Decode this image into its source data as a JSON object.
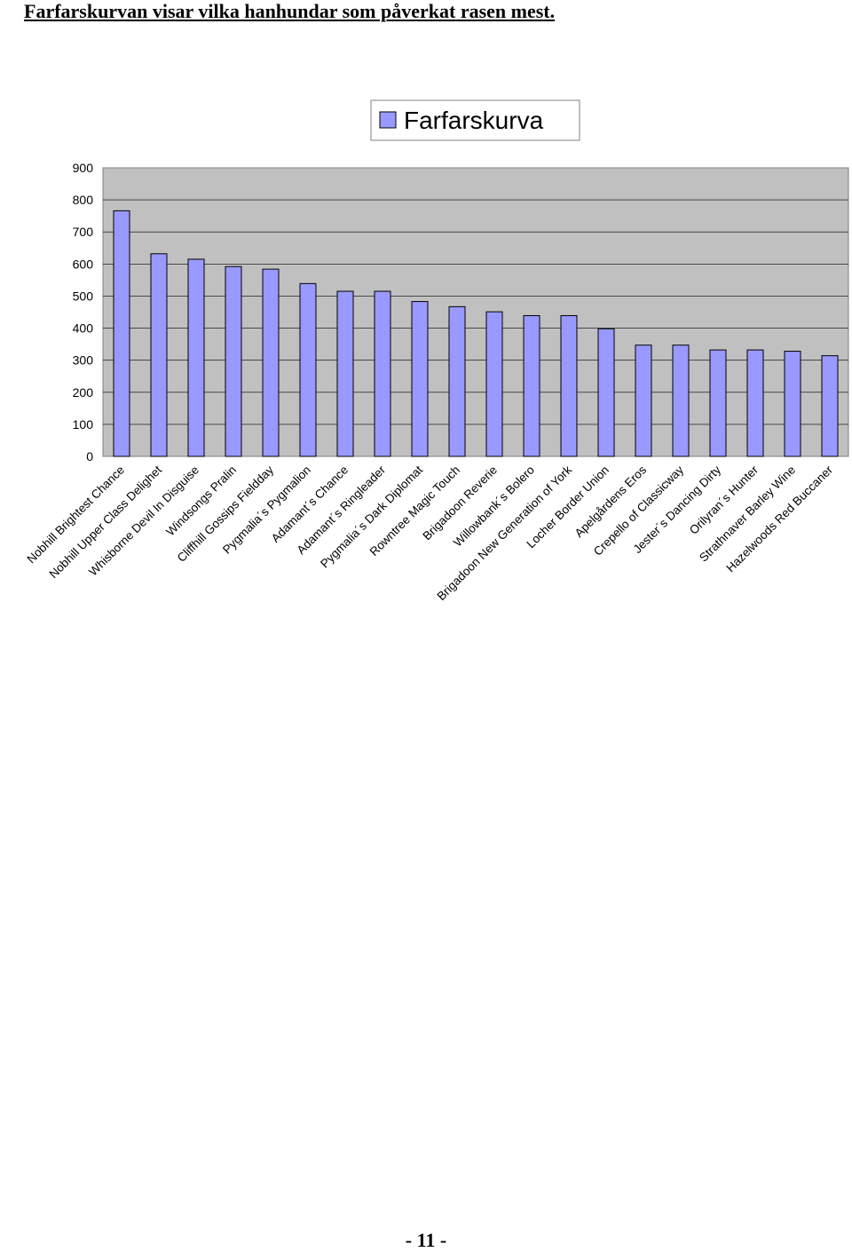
{
  "page": {
    "heading": "Farfarskurvan visar vilka hanhundar som påverkat rasen mest.",
    "page_number": "- 11 -"
  },
  "colors": {
    "bar_fill": "#9999ff",
    "plot_background": "#c0c0c0",
    "gridline": "#000000"
  },
  "chart_data": {
    "type": "bar",
    "title": "",
    "xlabel": "",
    "ylabel": "",
    "ylim": [
      0,
      900
    ],
    "y_ticks": [
      0,
      100,
      200,
      300,
      400,
      500,
      600,
      700,
      800,
      900
    ],
    "grid": true,
    "legend": {
      "placement": "top",
      "entries": [
        "Farfarskurva"
      ]
    },
    "categories": [
      "Nobhill Brightest  Chance",
      "Nobhill Upper Class Delighet",
      "Whisborne Devil In Disguise",
      "Windsongs Pralin",
      "Cliffhill Gossips Fieldday",
      "Pygmalia´s Pygmalion",
      "Adamant´s Chance",
      "Adamant´s Ringleader",
      "Pygmalia´s Dark Diplomat",
      "Rowntree Magic Touch",
      "Brigadoon Reverie",
      "Willowbank´s Bolero",
      "Brigadoon New Generation of York",
      "Locher Border Union",
      "Apelgårdens Eros",
      "Crepello of Classicway",
      "Jester´s Dancing Dirty",
      "Orilyran´s Hunter",
      "Strathnaver Barley Wine",
      "Hazelwoods Red Buccaner"
    ],
    "series": [
      {
        "name": "Farfarskurva",
        "values": [
          766,
          632,
          615,
          592,
          584,
          539,
          515,
          515,
          483,
          467,
          451,
          439,
          439,
          398,
          347,
          347,
          332,
          332,
          328,
          314
        ]
      }
    ]
  }
}
